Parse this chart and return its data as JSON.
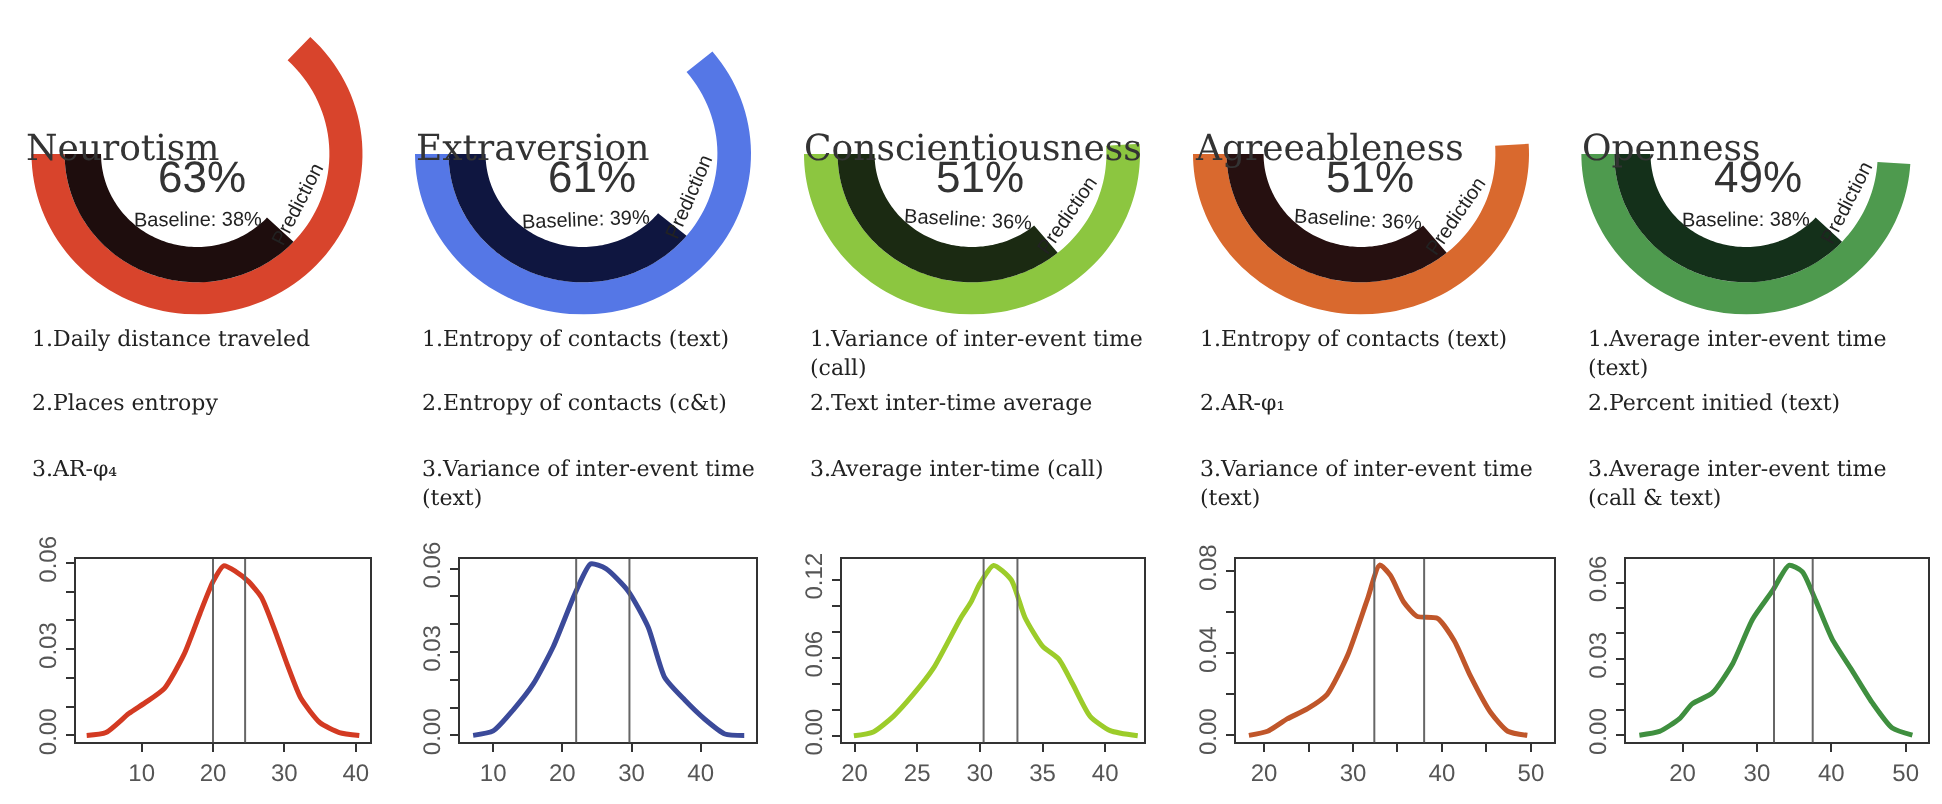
{
  "chart_data": [
    {
      "type": "other",
      "title": "Neurotism",
      "categories": [
        "Prediction",
        null
      ],
      "values": [
        63,
        38
      ],
      "colors": [
        "#d8442c",
        "#1e0d0d"
      ],
      "value_labels": [
        "63%",
        "Baseline: 38%"
      ],
      "annotations": [
        "1.Daily distance traveled",
        "2.Places entropy",
        "3.AR-φ₄"
      ]
    },
    {
      "type": "other",
      "title": "Extraversion",
      "categories": [
        "Prediction",
        null
      ],
      "values": [
        61,
        39
      ],
      "colors": [
        "#5577e6",
        "#0f1640"
      ],
      "value_labels": [
        "61%",
        "Baseline: 39%"
      ],
      "annotations": [
        "1.Entropy of contacts (text)",
        "2.Entropy of contacts (c&t)",
        "3.Variance of inter-event time (text)"
      ]
    },
    {
      "type": "other",
      "title": "Conscientiousness",
      "categories": [
        "Prediction",
        null
      ],
      "values": [
        51,
        36
      ],
      "colors": [
        "#8cc640",
        "#1b2a12"
      ],
      "value_labels": [
        "51%",
        "Baseline: 36%"
      ],
      "annotations": [
        "1.Variance of inter-event time (call)",
        "2.Text inter-time average",
        "3.Average inter-time (call)"
      ]
    },
    {
      "type": "other",
      "title": "Agreeableness",
      "categories": [
        "Prediction",
        null
      ],
      "values": [
        51,
        36
      ],
      "colors": [
        "#d9692e",
        "#261010"
      ],
      "value_labels": [
        "51%",
        "Baseline: 36%"
      ],
      "annotations": [
        "1.Entropy of contacts (text)",
        "2.AR-φ₁",
        "3.Variance of inter-event time (text)"
      ]
    },
    {
      "type": "other",
      "title": "Openness",
      "categories": [
        "Prediction",
        null
      ],
      "values": [
        49,
        38
      ],
      "colors": [
        "#4e9a4e",
        "#14301a"
      ],
      "value_labels": [
        "49%",
        "Baseline: 38%"
      ],
      "annotations": [
        "1.Average inter-event time (text)",
        "2.Percent initied (text)",
        "3.Average inter-event time (call & text)"
      ]
    },
    {
      "type": "line",
      "color": "#d33a22",
      "x": [
        2.3,
        5,
        8.2,
        10.5,
        13.2,
        15.9,
        18.2,
        20,
        21.5,
        23.2,
        25,
        26.8,
        28.6,
        30.5,
        32.3,
        35,
        37.7,
        40.5
      ],
      "values": [
        0,
        0.001,
        0.0076,
        0.0114,
        0.0164,
        0.028,
        0.0426,
        0.0535,
        0.059,
        0.057,
        0.0535,
        0.048,
        0.037,
        0.024,
        0.013,
        0.0044,
        0.001,
        0
      ],
      "xlim": [
        0.8,
        42
      ],
      "ylim": [
        -0.0024,
        0.0614
      ],
      "xticks": [
        10,
        20,
        30,
        40
      ],
      "yticks": [
        {
          "value": 0,
          "label": "0.00"
        },
        {
          "value": 0.01,
          "label": null
        },
        {
          "value": 0.02,
          "label": null
        },
        {
          "value": 0.03,
          "label": "0.03"
        },
        {
          "value": 0.04,
          "label": null
        },
        {
          "value": 0.05,
          "label": null
        },
        {
          "value": 0.06,
          "label": "0.06"
        }
      ],
      "ref_lines": [
        {
          "axis": "x",
          "value": 20,
          "color": "#666666"
        },
        {
          "axis": "x",
          "value": 24.5,
          "color": "#666666"
        }
      ]
    },
    {
      "type": "line",
      "color": "#3b4a9a",
      "x": [
        7.1,
        10,
        12.9,
        15.8,
        18.7,
        22,
        24.1,
        26.3,
        29.5,
        32.4,
        34.8,
        37.7,
        40.6,
        43.5,
        46.3
      ],
      "values": [
        0,
        0.0016,
        0.0092,
        0.0185,
        0.032,
        0.052,
        0.0617,
        0.06,
        0.052,
        0.039,
        0.0208,
        0.0127,
        0.0058,
        0.0005,
        0
      ],
      "xlim": [
        5.2,
        48
      ],
      "ylim": [
        -0.0025,
        0.0635
      ],
      "xticks": [
        10,
        20,
        30,
        40
      ],
      "yticks": [
        {
          "value": 0,
          "label": "0.00"
        },
        {
          "value": 0.01,
          "label": null
        },
        {
          "value": 0.02,
          "label": null
        },
        {
          "value": 0.03,
          "label": "0.03"
        },
        {
          "value": 0.04,
          "label": null
        },
        {
          "value": 0.05,
          "label": null
        },
        {
          "value": 0.06,
          "label": "0.06"
        }
      ],
      "ref_lines": [
        {
          "axis": "x",
          "value": 22,
          "color": "#666666"
        },
        {
          "axis": "x",
          "value": 29.7,
          "color": "#666666"
        }
      ]
    },
    {
      "type": "line",
      "color": "#9ccc2a",
      "x": [
        19.95,
        21.5,
        23.1,
        24.7,
        26.3,
        28.5,
        29.3,
        30,
        31.1,
        32.5,
        33.6,
        35,
        36.3,
        37.4,
        38.8,
        40.4,
        42.6
      ],
      "values": [
        0,
        0.003,
        0.015,
        0.032,
        0.052,
        0.091,
        0.103,
        0.117,
        0.131,
        0.12,
        0.091,
        0.069,
        0.059,
        0.04,
        0.015,
        0.004,
        0
      ],
      "xlim": [
        19,
        43.1
      ],
      "ylim": [
        -0.005,
        0.136
      ],
      "xticks": [
        20,
        25,
        30,
        35,
        40
      ],
      "yticks": [
        {
          "value": 0,
          "label": "0.00"
        },
        {
          "value": 0.02,
          "label": null
        },
        {
          "value": 0.04,
          "label": null
        },
        {
          "value": 0.06,
          "label": "0.06"
        },
        {
          "value": 0.08,
          "label": null
        },
        {
          "value": 0.1,
          "label": null
        },
        {
          "value": 0.12,
          "label": "0.12"
        }
      ],
      "ref_lines": [
        {
          "axis": "x",
          "value": 30.3,
          "color": "#666666"
        },
        {
          "axis": "x",
          "value": 33,
          "color": "#666666"
        }
      ]
    },
    {
      "type": "line",
      "color": "#c0562a",
      "x": [
        18.3,
        20.4,
        22.6,
        24.9,
        27.1,
        29.4,
        31.6,
        33,
        34.2,
        35.7,
        37.2,
        39.5,
        41.4,
        43.2,
        45.5,
        47.4,
        49.6
      ],
      "values": [
        0,
        0.002,
        0.008,
        0.013,
        0.02,
        0.039,
        0.066,
        0.083,
        0.078,
        0.065,
        0.058,
        0.057,
        0.046,
        0.029,
        0.011,
        0.002,
        0
      ],
      "xlim": [
        16.85,
        52.6
      ],
      "ylim": [
        -0.0034,
        0.086
      ],
      "xticks": [
        20,
        {
          "value": 25,
          "label": null
        },
        30,
        {
          "value": 35,
          "label": null
        },
        40,
        {
          "value": 45,
          "label": null
        },
        50
      ],
      "yticks": [
        {
          "value": 0,
          "label": "0.00"
        },
        {
          "value": 0.02,
          "label": null
        },
        {
          "value": 0.04,
          "label": "0.04"
        },
        {
          "value": 0.06,
          "label": null
        },
        {
          "value": 0.08,
          "label": "0.08"
        }
      ],
      "ref_lines": [
        {
          "axis": "x",
          "value": 32.4,
          "color": "#666666"
        },
        {
          "axis": "x",
          "value": 38,
          "color": "#666666"
        }
      ]
    },
    {
      "type": "line",
      "color": "#3f8f3f",
      "x": [
        14.2,
        16.9,
        19.6,
        21.3,
        24,
        26.7,
        29.4,
        32.1,
        34.3,
        36.1,
        37.9,
        40.1,
        42.8,
        45.5,
        48.2,
        50.9
      ],
      "values": [
        0,
        0.0015,
        0.0065,
        0.0123,
        0.0166,
        0.0279,
        0.0455,
        0.0568,
        0.0668,
        0.0643,
        0.053,
        0.0379,
        0.0254,
        0.0128,
        0.0028,
        0
      ],
      "xlim": [
        12.4,
        53
      ],
      "ylim": [
        -0.0028,
        0.0693
      ],
      "xticks": [
        20,
        30,
        40,
        50
      ],
      "yticks": [
        {
          "value": 0,
          "label": "0.00"
        },
        {
          "value": 0.01,
          "label": null
        },
        {
          "value": 0.02,
          "label": null
        },
        {
          "value": 0.03,
          "label": "0.03"
        },
        {
          "value": 0.04,
          "label": null
        },
        {
          "value": 0.05,
          "label": null
        },
        {
          "value": 0.06,
          "label": "0.06"
        }
      ],
      "ref_lines": [
        {
          "axis": "x",
          "value": 32.3,
          "color": "#666666"
        },
        {
          "axis": "x",
          "value": 37.5,
          "color": "#666666"
        }
      ]
    }
  ]
}
